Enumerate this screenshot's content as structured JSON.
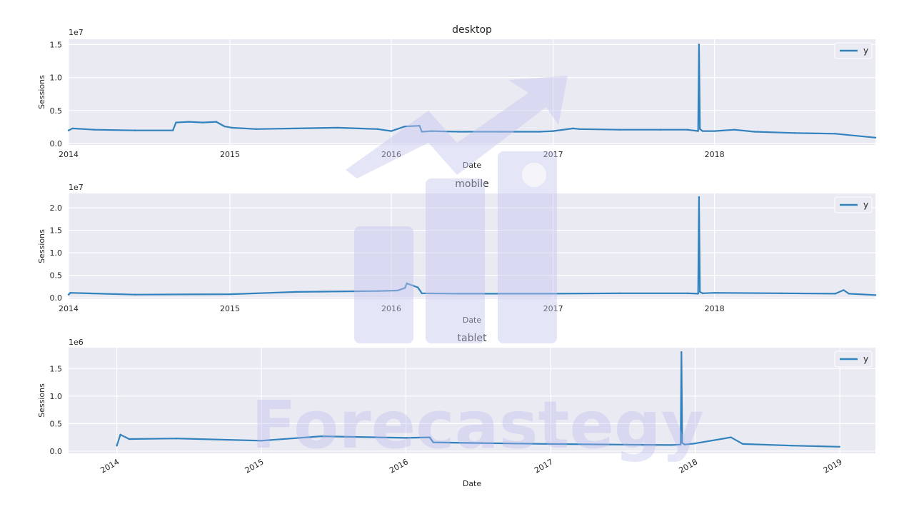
{
  "chart_data": [
    {
      "type": "line",
      "title": "desktop",
      "xlabel": "Date",
      "ylabel": "Sessions",
      "offset_label": "1e7",
      "y_scale": 10000000,
      "ylim": [
        -200000,
        15800000
      ],
      "yticks": [
        0,
        5000000,
        10000000,
        15000000
      ],
      "ytick_labels": [
        "0.0",
        "0.5",
        "1.0",
        "1.5"
      ],
      "xlim": [
        "2014-01-01",
        "2018-12-31"
      ],
      "xticks": [
        "2014-01-01",
        "2015-01-01",
        "2016-01-01",
        "2017-01-01",
        "2018-01-01"
      ],
      "xtick_labels": [
        "2014",
        "2015",
        "2016",
        "2017",
        "2018"
      ],
      "legend": "top-right",
      "grid": true,
      "series": [
        {
          "name": "y",
          "color": "#3182bd",
          "x": [
            "2014-01-01",
            "2014-01-10",
            "2014-03-01",
            "2014-06-01",
            "2014-08-25",
            "2014-09-01",
            "2014-10-01",
            "2014-11-01",
            "2014-12-01",
            "2014-12-20",
            "2015-01-05",
            "2015-03-01",
            "2015-06-01",
            "2015-09-01",
            "2015-12-01",
            "2016-01-01",
            "2016-02-01",
            "2016-03-05",
            "2016-03-10",
            "2016-04-01",
            "2016-06-01",
            "2016-09-01",
            "2016-12-01",
            "2017-01-01",
            "2017-02-15",
            "2017-03-01",
            "2017-06-01",
            "2017-09-01",
            "2017-11-01",
            "2017-11-25",
            "2017-11-27",
            "2017-11-29",
            "2017-12-05",
            "2018-01-01",
            "2018-02-15",
            "2018-04-01",
            "2018-07-01",
            "2018-10-01",
            "2018-12-31"
          ],
          "y": [
            2000000,
            2300000,
            2100000,
            2000000,
            2000000,
            3200000,
            3300000,
            3200000,
            3300000,
            2600000,
            2400000,
            2200000,
            2300000,
            2400000,
            2200000,
            1900000,
            2600000,
            2700000,
            1800000,
            1900000,
            1800000,
            1800000,
            1800000,
            1900000,
            2300000,
            2200000,
            2100000,
            2100000,
            2100000,
            1900000,
            15000000,
            2200000,
            1900000,
            1900000,
            2100000,
            1800000,
            1600000,
            1500000,
            900000
          ]
        }
      ]
    },
    {
      "type": "line",
      "title": "mobile",
      "xlabel": "Date",
      "ylabel": "Sessions",
      "offset_label": "1e7",
      "y_scale": 10000000,
      "ylim": [
        -300000,
        23200000
      ],
      "yticks": [
        0,
        5000000,
        10000000,
        15000000,
        20000000
      ],
      "ytick_labels": [
        "0.0",
        "0.5",
        "1.0",
        "1.5",
        "2.0"
      ],
      "xlim": [
        "2014-01-01",
        "2018-12-31"
      ],
      "xticks": [
        "2014-01-01",
        "2015-01-01",
        "2016-01-01",
        "2017-01-01",
        "2018-01-01"
      ],
      "xtick_labels": [
        "2014",
        "2015",
        "2016",
        "2017",
        "2018"
      ],
      "legend": "top-right",
      "grid": true,
      "series": [
        {
          "name": "y",
          "color": "#3182bd",
          "x": [
            "2014-01-01",
            "2014-01-05",
            "2014-06-01",
            "2015-01-01",
            "2015-06-01",
            "2015-12-01",
            "2016-01-15",
            "2016-02-01",
            "2016-02-05",
            "2016-03-01",
            "2016-03-10",
            "2016-06-01",
            "2017-01-01",
            "2017-06-01",
            "2017-11-01",
            "2017-11-25",
            "2017-11-27",
            "2017-11-29",
            "2017-12-05",
            "2018-01-01",
            "2018-06-01",
            "2018-10-01",
            "2018-10-20",
            "2018-11-01",
            "2018-12-31"
          ],
          "y": [
            700000,
            1100000,
            700000,
            800000,
            1300000,
            1500000,
            1600000,
            2200000,
            3200000,
            2300000,
            1000000,
            900000,
            900000,
            1000000,
            1000000,
            900000,
            22400000,
            1300000,
            1000000,
            1100000,
            1000000,
            900000,
            1700000,
            900000,
            600000
          ]
        }
      ]
    },
    {
      "type": "line",
      "title": "tablet",
      "xlabel": "Date",
      "ylabel": "Sessions",
      "offset_label": "1e6",
      "y_scale": 1000000,
      "ylim": [
        -40000,
        1880000
      ],
      "yticks": [
        0,
        500000,
        1000000,
        1500000
      ],
      "ytick_labels": [
        "0.0",
        "0.5",
        "1.0",
        "1.5"
      ],
      "xlim": [
        "2013-09-01",
        "2019-04-01"
      ],
      "xticks": [
        "2014-01-01",
        "2015-01-01",
        "2016-01-01",
        "2017-01-01",
        "2018-01-01",
        "2019-01-01"
      ],
      "xtick_labels": [
        "2014",
        "2015",
        "2016",
        "2017",
        "2018",
        "2019"
      ],
      "legend": "top-right",
      "grid": true,
      "series": [
        {
          "name": "y",
          "color": "#3182bd",
          "x": [
            "2014-01-01",
            "2014-01-10",
            "2014-02-01",
            "2014-06-01",
            "2015-01-01",
            "2015-06-01",
            "2016-01-01",
            "2016-03-01",
            "2016-03-10",
            "2016-06-01",
            "2017-01-01",
            "2017-06-01",
            "2017-11-01",
            "2017-11-25",
            "2017-11-27",
            "2017-11-29",
            "2017-12-05",
            "2018-01-01",
            "2018-04-01",
            "2018-05-01",
            "2018-09-01",
            "2018-12-31"
          ],
          "y": [
            100000,
            300000,
            220000,
            230000,
            190000,
            270000,
            240000,
            250000,
            160000,
            150000,
            130000,
            120000,
            110000,
            120000,
            1800000,
            150000,
            120000,
            140000,
            250000,
            130000,
            100000,
            80000
          ]
        }
      ]
    }
  ],
  "watermark": {
    "text": "Forecastegy",
    "color": "#b8b8ee"
  }
}
